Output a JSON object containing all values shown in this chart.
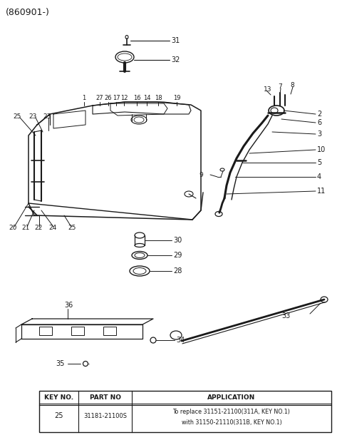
{
  "title": "(860901-)",
  "bg_color": "#ffffff",
  "line_color": "#1a1a1a",
  "table": {
    "key_no": "25",
    "part_no": "31181-21100S",
    "application_line1": "To replace 31151-21100(311A, KEY NO.1)",
    "application_line2": "with 31150-21110(311B, KEY NO.1)"
  }
}
